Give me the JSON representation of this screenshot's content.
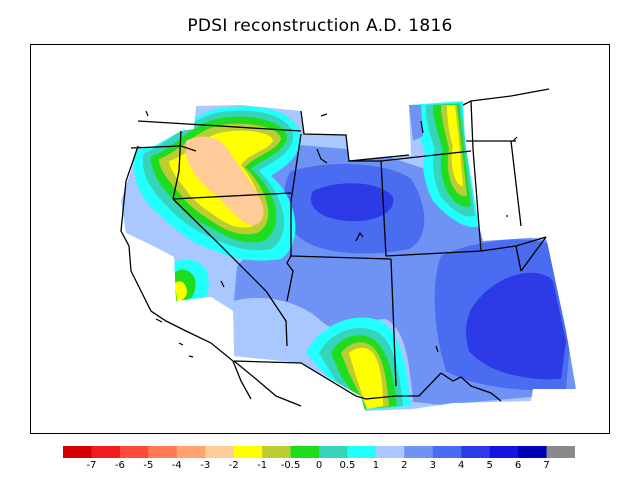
{
  "title": "PDSI reconstruction A.D. 1816",
  "colors": {
    "c_m7": "#d40000",
    "c_m6": "#f21a1a",
    "c_m5": "#ff4a3a",
    "c_m4": "#ff7a55",
    "c_m3": "#ffa46e",
    "c_m2": "#ffcc99",
    "c_m1": "#ffff00",
    "c_m05": "#bccc33",
    "c_0": "#1fdc1f",
    "c_05": "#35d4bb",
    "c_1": "#22ffff",
    "c_2": "#a8c8ff",
    "c_3": "#6e93f5",
    "c_4": "#4a6cf0",
    "c_5": "#2d3be6",
    "c_6": "#1414e0",
    "c_7": "#0000b8",
    "c_over": "#8a8a8a"
  },
  "legend": {
    "colors": [
      "#d40000",
      "#f21a1a",
      "#ff4a3a",
      "#ff7a55",
      "#ffa46e",
      "#ffcc99",
      "#ffff00",
      "#bccc33",
      "#1fdc1f",
      "#35d4bb",
      "#22ffff",
      "#a8c8ff",
      "#6e93f5",
      "#4a6cf0",
      "#2d3be6",
      "#1414e0",
      "#0000b8",
      "#8a8a8a"
    ],
    "ticks": [
      "-7",
      "-6",
      "-5",
      "-4",
      "-3",
      "-2",
      "-1",
      "-0.5",
      "0",
      "0.5",
      "1",
      "2",
      "3",
      "4",
      "5",
      "6",
      "7"
    ]
  }
}
